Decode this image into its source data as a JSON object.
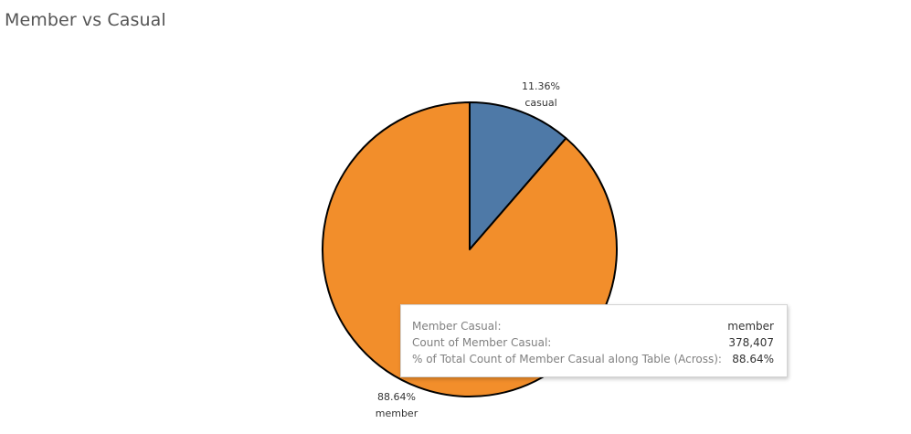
{
  "title": "Member vs Casual",
  "chart_data": {
    "type": "pie",
    "title": "Member vs Casual",
    "slices": [
      {
        "label": "casual",
        "percent": 11.36,
        "pct_label": "11.36%",
        "color": "#4e79a7"
      },
      {
        "label": "member",
        "percent": 88.64,
        "pct_label": "88.64%",
        "color": "#f28e2b"
      }
    ]
  },
  "tooltip": {
    "rows": [
      {
        "key": "Member Casual:",
        "value": "member"
      },
      {
        "key": "Count of Member Casual:",
        "value": "378,407"
      },
      {
        "key": "% of Total Count of Member Casual along Table (Across):",
        "value": "88.64%"
      }
    ]
  }
}
